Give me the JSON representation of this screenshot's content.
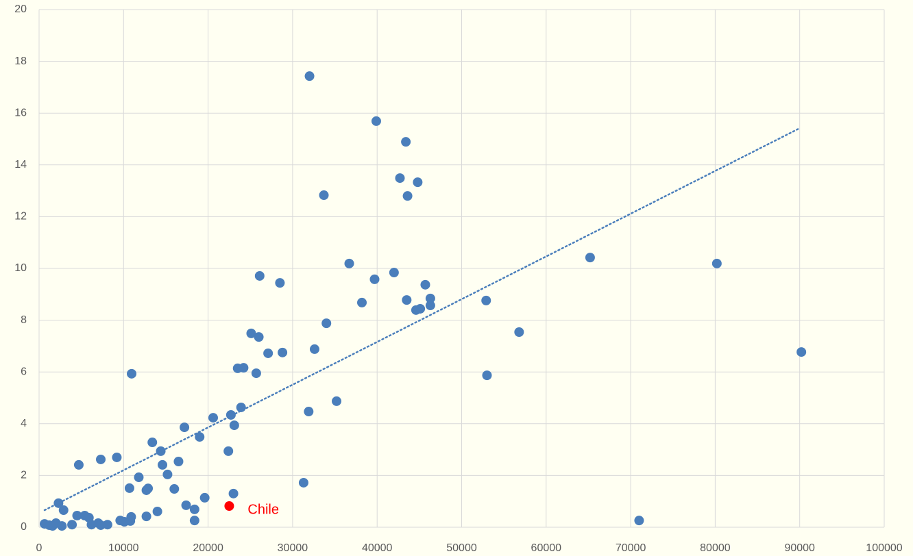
{
  "chart_data": {
    "type": "scatter",
    "series": [
      {
        "color": "#4a7ebb",
        "x": [
          650,
          1200,
          1600,
          2000,
          2300,
          2700,
          2900,
          3900,
          4500,
          4700,
          5400,
          5900,
          6200,
          7000,
          7300,
          7300,
          8100,
          9200,
          9600,
          10100,
          10700,
          10800,
          10900,
          10950,
          11800,
          12700,
          12900,
          12700,
          13400,
          14000,
          14400,
          14600,
          15200,
          16000,
          16500,
          17200,
          17400,
          18400,
          18400,
          19000,
          19600,
          20600,
          22400,
          22700,
          23000,
          23100,
          23500,
          23900,
          24200,
          25100,
          25700,
          26000,
          26100,
          27100,
          28500,
          28800,
          31300,
          31900,
          32000,
          32600,
          33700,
          34000,
          35200,
          36700,
          38200,
          39700,
          39900,
          42000,
          42700,
          43400,
          43500,
          43600,
          44800,
          45700,
          44600,
          45100,
          46300,
          46300,
          52900,
          53000,
          56800,
          65200,
          71000,
          80200,
          90200
        ],
        "y": [
          0.13,
          0.08,
          0.05,
          0.16,
          0.93,
          0.05,
          0.66,
          0.1,
          0.45,
          2.41,
          0.45,
          0.37,
          0.1,
          0.16,
          2.62,
          0.08,
          0.1,
          2.7,
          0.26,
          0.21,
          1.51,
          0.24,
          0.4,
          5.93,
          1.93,
          1.43,
          1.5,
          0.42,
          3.28,
          0.61,
          2.94,
          2.41,
          2.04,
          1.48,
          2.54,
          3.86,
          0.85,
          0.69,
          0.26,
          3.49,
          1.14,
          4.23,
          2.94,
          4.34,
          1.3,
          3.94,
          6.14,
          4.63,
          6.16,
          7.49,
          5.95,
          7.35,
          9.71,
          6.72,
          9.44,
          6.75,
          1.72,
          4.47,
          17.43,
          6.88,
          12.83,
          7.88,
          4.87,
          10.19,
          8.68,
          9.58,
          15.69,
          9.84,
          13.49,
          14.89,
          8.78,
          12.8,
          13.33,
          9.37,
          8.39,
          8.44,
          8.84,
          8.57,
          8.76,
          5.87,
          7.54,
          10.42,
          0.26,
          10.19,
          6.77
        ]
      }
    ],
    "annotations": [
      {
        "text": "Chile",
        "x": 22500,
        "y": 0.82,
        "color": "#ff0000"
      }
    ],
    "trendline": {
      "x": [
        650,
        89900
      ],
      "y": [
        0.66,
        15.4
      ],
      "color": "#4a7ebb"
    },
    "xlim": [
      0,
      100000
    ],
    "xticks": [
      0,
      10000,
      20000,
      30000,
      40000,
      50000,
      60000,
      70000,
      80000,
      90000,
      100000
    ],
    "ylim": [
      0,
      20
    ],
    "yticks": [
      0,
      2,
      4,
      6,
      8,
      10,
      12,
      14,
      16,
      18,
      20
    ],
    "grid": true
  }
}
